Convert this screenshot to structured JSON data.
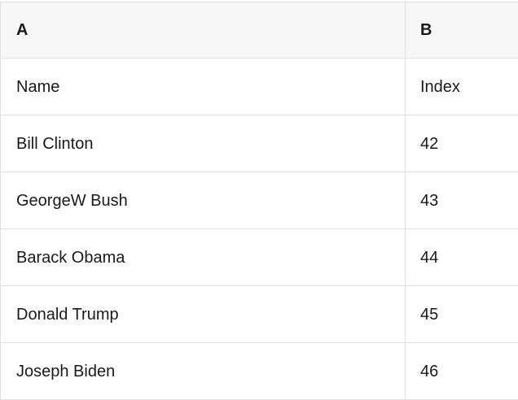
{
  "colors": {
    "header_background": "#f7f7f7",
    "row_background": "#ffffff",
    "gridline": "#e0e0e0",
    "text": "#1a1a1a"
  },
  "table": {
    "column_headers": [
      "A",
      "B"
    ],
    "field_row": [
      "Name",
      "Index"
    ],
    "rows": [
      {
        "name": "Bill Clinton",
        "index": "42"
      },
      {
        "name": "GeorgeW Bush",
        "index": "43"
      },
      {
        "name": "Barack Obama",
        "index": "44"
      },
      {
        "name": "Donald Trump",
        "index": "45"
      },
      {
        "name": "Joseph Biden",
        "index": "46"
      }
    ]
  }
}
